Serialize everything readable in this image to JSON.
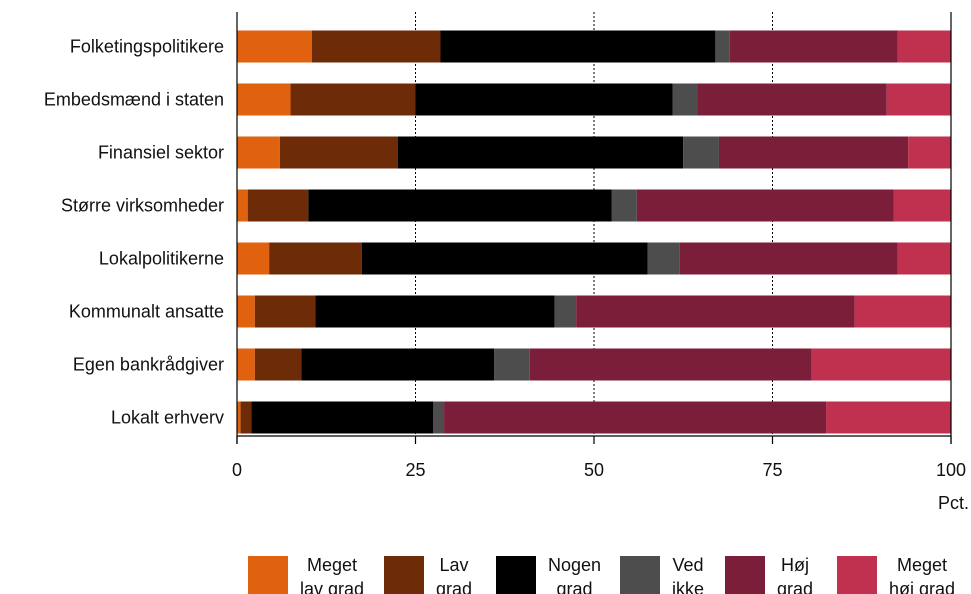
{
  "chart_data": {
    "type": "bar",
    "orientation": "horizontal",
    "stacked": true,
    "title": "",
    "xlabel": "Pct.",
    "ylabel": "",
    "xlim": [
      0,
      100
    ],
    "xticks": [
      0,
      25,
      50,
      75,
      100
    ],
    "grid": "vertical dotted at 25, 50, 75",
    "legend_position": "bottom",
    "categories": [
      "Folketingspolitikere",
      "Embedsmænd i staten",
      "Finansiel sektor",
      "Større virksomheder",
      "Lokalpolitikerne",
      "Kommunalt ansatte",
      "Egen bankrådgiver",
      "Lokalt erhverv"
    ],
    "series": [
      {
        "name": [
          "Meget",
          "lav grad"
        ],
        "color": "#E0620F",
        "values": [
          10.5,
          7.5,
          6.0,
          1.5,
          4.5,
          2.5,
          2.5,
          0.5
        ]
      },
      {
        "name": [
          "Lav",
          "grad"
        ],
        "color": "#6E2B08",
        "values": [
          18.0,
          17.5,
          16.5,
          8.5,
          13.0,
          8.5,
          6.5,
          1.5
        ]
      },
      {
        "name": [
          "Nogen",
          "grad"
        ],
        "color": "#000000",
        "values": [
          38.5,
          36.0,
          40.0,
          42.5,
          40.0,
          33.5,
          27.0,
          25.5
        ]
      },
      {
        "name": [
          "Ved",
          "ikke"
        ],
        "color": "#4D4D4D",
        "values": [
          2.0,
          3.5,
          5.0,
          3.5,
          4.5,
          3.0,
          5.0,
          1.5
        ]
      },
      {
        "name": [
          "Høj",
          "grad"
        ],
        "color": "#7B1E3A",
        "values": [
          23.5,
          26.5,
          26.5,
          36.0,
          30.5,
          39.0,
          39.5,
          53.5
        ]
      },
      {
        "name": [
          "Meget",
          "høj grad"
        ],
        "color": "#C0304F",
        "values": [
          7.5,
          9.0,
          6.0,
          8.0,
          7.5,
          13.5,
          19.5,
          17.5
        ]
      }
    ]
  }
}
